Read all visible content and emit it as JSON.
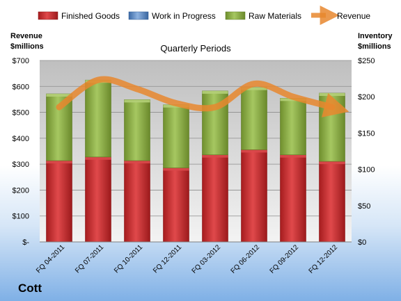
{
  "company": "Cott",
  "chart_data": {
    "type": "bar",
    "title": "Quarterly Periods",
    "categories": [
      "FQ 04-2011",
      "FQ 07-2011",
      "FQ 10-2011",
      "FQ 12-2011",
      "FQ 03-2012",
      "FQ 06-2012",
      "FQ 09-2012",
      "FQ 12-2012"
    ],
    "left_axis": {
      "label_lines": [
        "Revenue",
        "$millions"
      ],
      "ylim": [
        0,
        700
      ],
      "ticks": [
        0,
        100,
        200,
        300,
        400,
        500,
        600,
        700
      ],
      "tick_labels": [
        "$-",
        "$100",
        "$200",
        "$300",
        "$400",
        "$500",
        "$600",
        "$700"
      ]
    },
    "right_axis": {
      "label_lines": [
        "Inventory",
        "$millions"
      ],
      "ylim": [
        0,
        250
      ],
      "ticks": [
        0,
        50,
        100,
        150,
        200,
        250
      ],
      "tick_labels": [
        "$0",
        "$50",
        "$100",
        "$150",
        "$200",
        "$250"
      ]
    },
    "series": [
      {
        "name": "Finished Goods",
        "kind": "stacked_bar",
        "axis": "right",
        "color": "#c0282a",
        "values": [
          112,
          117,
          112,
          102,
          120,
          127,
          120,
          111
        ]
      },
      {
        "name": "Work in Progress",
        "kind": "stacked_bar",
        "axis": "right",
        "color": "#4f81bd",
        "values": [
          0,
          0,
          0,
          0,
          0,
          0,
          0,
          0
        ]
      },
      {
        "name": "Raw Materials",
        "kind": "stacked_bar",
        "axis": "right",
        "color": "#8aad3f",
        "values": [
          92,
          106,
          84,
          87,
          88,
          86,
          78,
          94
        ]
      },
      {
        "name": "Revenue",
        "kind": "line",
        "axis": "left",
        "color": "#e8872e",
        "values": [
          520,
          625,
          590,
          535,
          520,
          610,
          560,
          520
        ]
      }
    ],
    "legend_position": "top",
    "grid": true
  }
}
